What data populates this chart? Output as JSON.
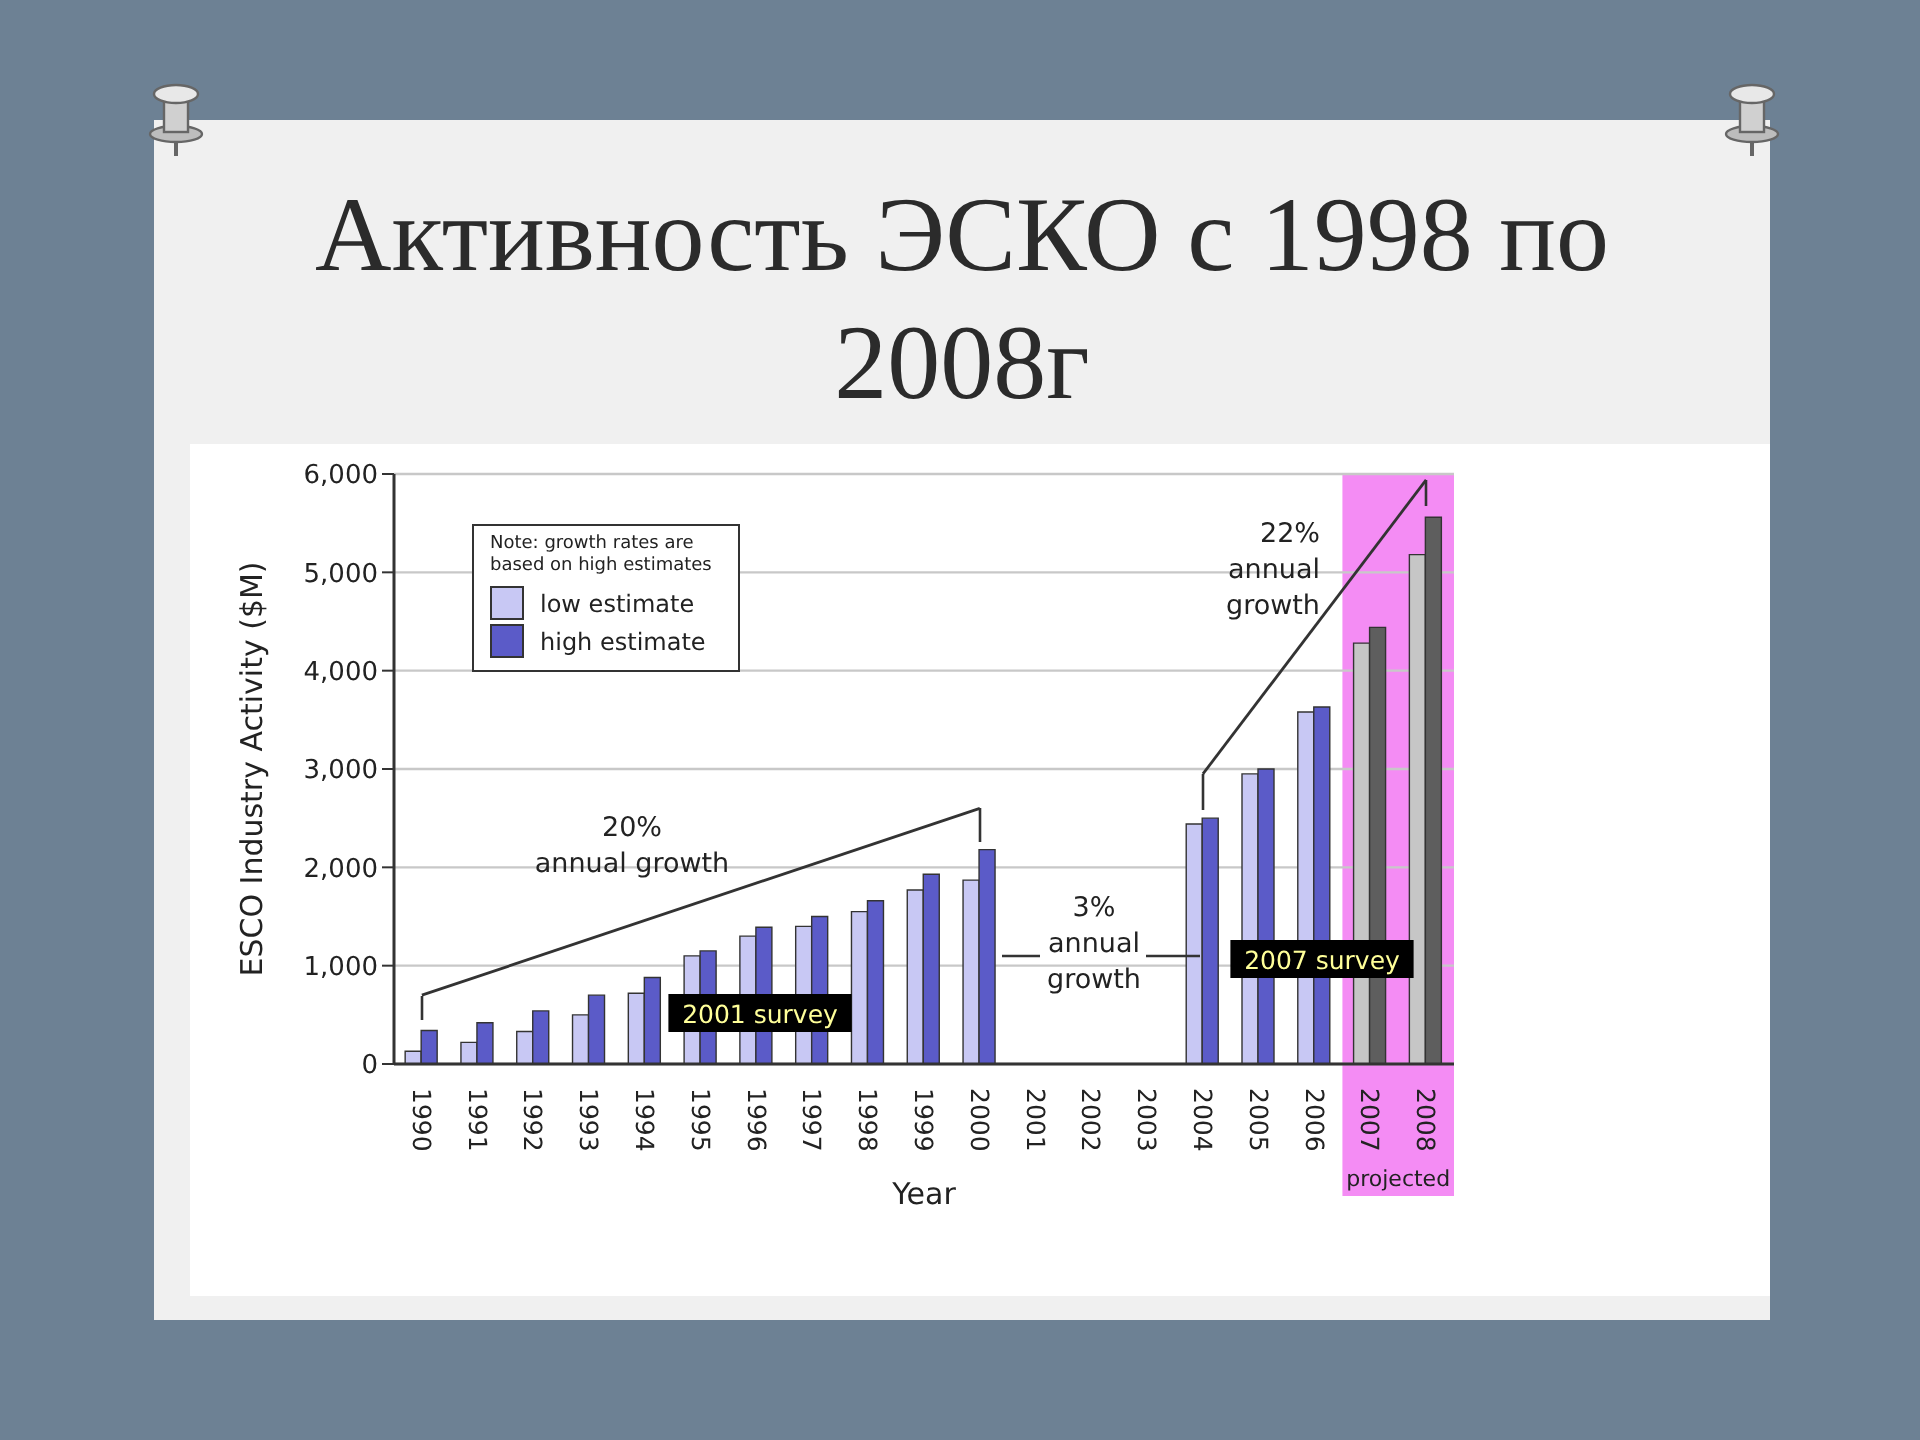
{
  "chart_data": {
    "type": "bar",
    "title": "Активность ЭСКО с 1998 по 2008г",
    "xlabel": "Year",
    "ylabel": "ESCO Industry Activity ($M)",
    "legend_title": "Note: growth rates are based on high estimates",
    "categories": [
      "1990",
      "1991",
      "1992",
      "1993",
      "1994",
      "1995",
      "1996",
      "1997",
      "1998",
      "1999",
      "2000",
      "2001",
      "2002",
      "2003",
      "2004",
      "2005",
      "2006",
      "2007",
      "2008"
    ],
    "series": [
      {
        "name": "low estimate",
        "color": "#c8c8f4",
        "colors": [
          "#c8c8f4",
          "#c8c8f4",
          "#c8c8f4",
          "#c8c8f4",
          "#c8c8f4",
          "#c8c8f4",
          "#c8c8f4",
          "#c8c8f4",
          "#c8c8f4",
          "#c8c8f4",
          "#c8c8f4",
          "#c8c8f4",
          "#c8c8f4",
          "#c8c8f4",
          "#c8c8f4",
          "#c8c8f4",
          "#c8c8f4",
          "#c6c6c6",
          "#c6c6c6"
        ],
        "values": [
          130,
          220,
          330,
          500,
          720,
          1100,
          1300,
          1400,
          1550,
          1770,
          1870,
          null,
          null,
          null,
          2440,
          2950,
          3580,
          4280,
          5180
        ]
      },
      {
        "name": "high estimate",
        "color": "#5b5bc8",
        "colors": [
          "#5b5bc8",
          "#5b5bc8",
          "#5b5bc8",
          "#5b5bc8",
          "#5b5bc8",
          "#5b5bc8",
          "#5b5bc8",
          "#5b5bc8",
          "#5b5bc8",
          "#5b5bc8",
          "#5b5bc8",
          "#5b5bc8",
          "#5b5bc8",
          "#5b5bc8",
          "#5b5bc8",
          "#5b5bc8",
          "#5b5bc8",
          "#5e5e5e",
          "#5e5e5e"
        ],
        "values": [
          340,
          420,
          540,
          700,
          880,
          1150,
          1390,
          1500,
          1660,
          1930,
          2180,
          null,
          null,
          null,
          2500,
          3000,
          3630,
          4440,
          5560
        ]
      },
      {
        "type": "line",
        "color": "#333333",
        "values": [
          700,
          null,
          null,
          null,
          null,
          null,
          null,
          null,
          null,
          null,
          2600,
          null,
          null,
          null,
          null,
          null,
          null,
          null,
          null
        ]
      },
      {
        "type": "line",
        "color": "#333333",
        "values": [
          null,
          null,
          null,
          null,
          null,
          null,
          null,
          null,
          null,
          null,
          null,
          null,
          null,
          null,
          2950,
          null,
          null,
          null,
          5940
        ]
      }
    ],
    "ylim": [
      0,
      6000
    ],
    "yticks": [
      0,
      {
        "value": 1000,
        "label": "1,000"
      },
      {
        "value": 2000,
        "label": "2,000"
      },
      {
        "value": 3000,
        "label": "3,000"
      },
      {
        "value": 4000,
        "label": "4,000"
      },
      {
        "value": 5000,
        "label": "5,000"
      },
      {
        "value": 6000,
        "label": "6,000"
      }
    ],
    "grid": "y",
    "legend": "top left",
    "bands": [
      {
        "axis": "x",
        "from": "2007",
        "to": "2008",
        "label": "projected",
        "color": "#f48cf4"
      }
    ],
    "annotations": [
      "20%\nannual growth",
      "3%\nannual\ngrowth",
      "22%\nannual\ngrowth",
      "2001 survey",
      "2007 survey"
    ]
  }
}
